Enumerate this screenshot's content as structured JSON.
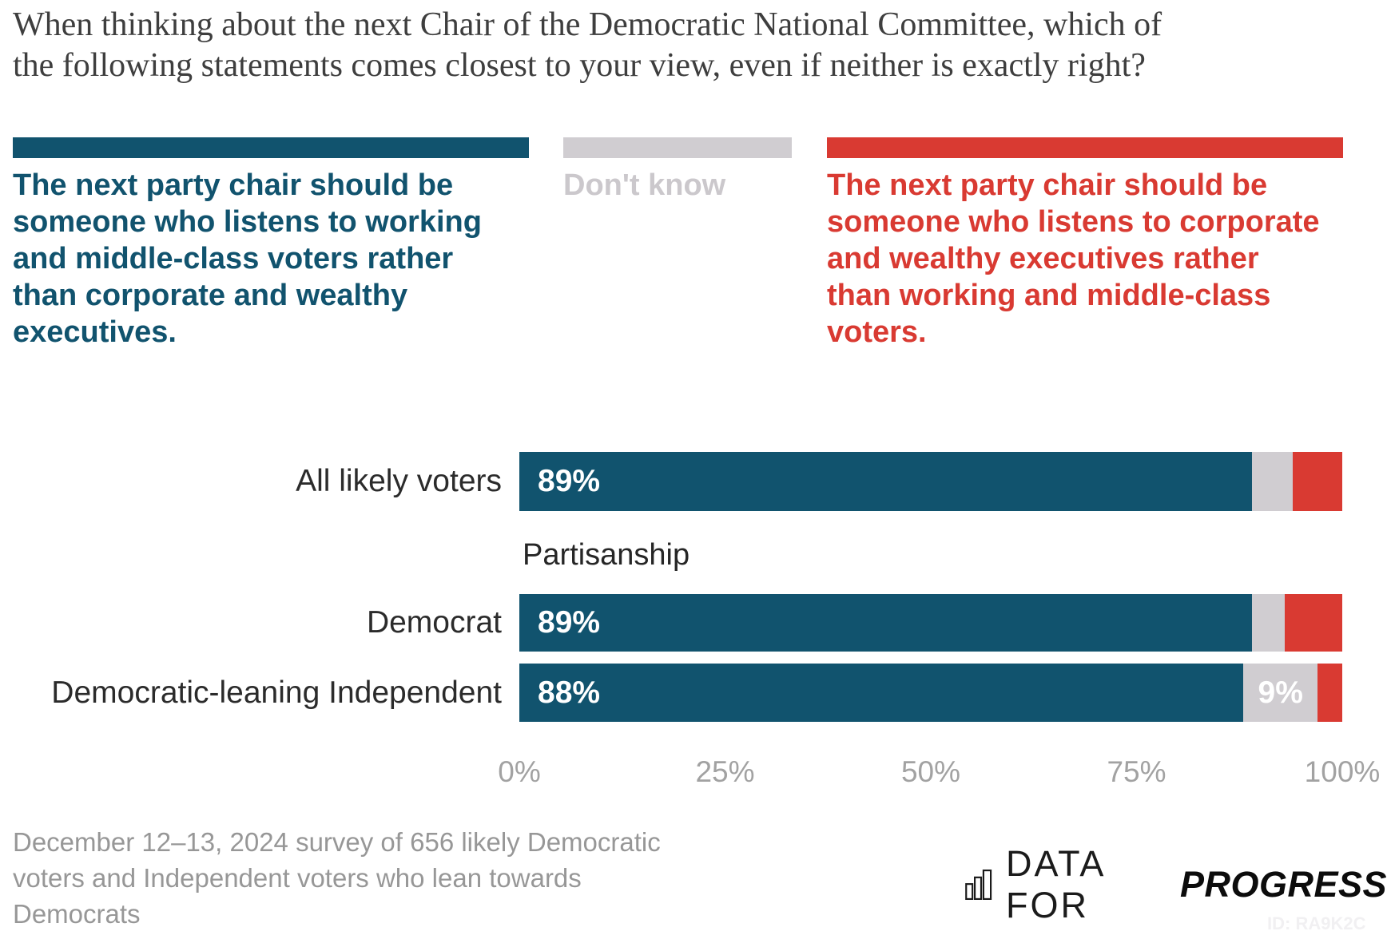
{
  "title": "When thinking about the next Chair of the Democratic National Committee, which of\nthe following statements comes closest to your view, even if neither is exactly right?",
  "legend": {
    "working": {
      "label": "The next party chair should be\nsomeone who listens to working\nand middle-class voters rather\nthan corporate and wealthy\nexecutives.",
      "color": "#11536E"
    },
    "dont_know": {
      "label": "Don't know",
      "color": "#D0CDD1",
      "text_color": "#CBC8CC"
    },
    "corporate": {
      "label": "The next party chair should be\nsomeone who listens to corporate\nand wealthy executives rather\nthan working and middle-class\nvoters.",
      "color": "#D93A32"
    }
  },
  "chart_data": {
    "type": "bar",
    "orientation": "horizontal",
    "stacked": true,
    "xlim": [
      0,
      100
    ],
    "x_ticks": [
      "0%",
      "25%",
      "50%",
      "75%",
      "100%"
    ],
    "section_label": "Partisanship",
    "categories": [
      "All likely voters",
      "Democrat",
      "Democratic-leaning Independent"
    ],
    "series": [
      {
        "name": "The next party chair should be someone who listens to working and middle-class voters rather than corporate and wealthy executives.",
        "color": "#11536E",
        "values": [
          89,
          89,
          88
        ]
      },
      {
        "name": "Don't know",
        "color": "#D0CDD1",
        "values": [
          5,
          4,
          9
        ]
      },
      {
        "name": "The next party chair should be someone who listens to corporate and wealthy executives rather than working and middle-class voters.",
        "color": "#D93A32",
        "values": [
          6,
          7,
          3
        ]
      }
    ],
    "segment_labels": [
      [
        "89%",
        "",
        ""
      ],
      [
        "89%",
        "",
        ""
      ],
      [
        "88%",
        "9%",
        ""
      ]
    ]
  },
  "footer": {
    "source": "December 12–13, 2024 survey of 656 likely Democratic\nvoters and Independent voters who lean towards\nDemocrats",
    "chart_id": "ID: RA9K2C"
  },
  "logo": {
    "icon": "bar-chart-icon",
    "prefix": "DATA FOR",
    "suffix": "PROGRESS"
  }
}
